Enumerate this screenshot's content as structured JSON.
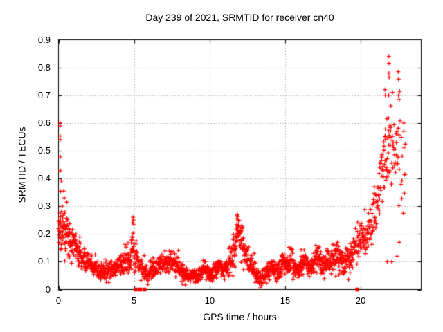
{
  "chart_data": {
    "type": "scatter",
    "title": "Day 239 of 2021, SRMTID for receiver cn40",
    "xlabel": "GPS time / hours",
    "ylabel": "SRMTID / TECUs",
    "xlim": [
      0,
      24
    ],
    "ylim": [
      0,
      0.9
    ],
    "xticks": [
      0,
      5,
      10,
      15,
      20
    ],
    "xtick_labels": [
      "0",
      "5",
      "10",
      "15",
      "20"
    ],
    "yticks": [
      0,
      0.1,
      0.2,
      0.3,
      0.4,
      0.5,
      0.6,
      0.7,
      0.8,
      0.9
    ],
    "ytick_labels": [
      "0",
      "0.1",
      "0.2",
      "0.3",
      "0.4",
      "0.5",
      "0.6",
      "0.7",
      "0.8",
      "0.9"
    ],
    "grid": true,
    "legend": "none",
    "marker": {
      "shape": "plus",
      "color": "#ff0000",
      "size": 6
    },
    "grid_color": "#b0b0b0",
    "axis_color": "#000000",
    "background_color": "#ffffff",
    "series_name": "SRMTID",
    "seed": 239,
    "envelope_bins": {
      "bin_width_hours": 0.25,
      "columns": [
        "start_hour",
        "center_tecu",
        "halfwidth_tecu",
        "count"
      ],
      "rows": [
        [
          0.0,
          0.23,
          0.09,
          26
        ],
        [
          0.25,
          0.22,
          0.07,
          24
        ],
        [
          0.5,
          0.2,
          0.06,
          22
        ],
        [
          0.75,
          0.17,
          0.05,
          22
        ],
        [
          1.0,
          0.15,
          0.05,
          22
        ],
        [
          1.25,
          0.13,
          0.05,
          22
        ],
        [
          1.5,
          0.115,
          0.04,
          22
        ],
        [
          1.75,
          0.1,
          0.035,
          22
        ],
        [
          2.0,
          0.09,
          0.035,
          22
        ],
        [
          2.25,
          0.078,
          0.03,
          22
        ],
        [
          2.5,
          0.07,
          0.03,
          22
        ],
        [
          2.75,
          0.065,
          0.028,
          22
        ],
        [
          3.0,
          0.068,
          0.03,
          22
        ],
        [
          3.25,
          0.07,
          0.03,
          22
        ],
        [
          3.5,
          0.075,
          0.032,
          22
        ],
        [
          3.75,
          0.08,
          0.032,
          22
        ],
        [
          4.0,
          0.085,
          0.035,
          22
        ],
        [
          4.25,
          0.095,
          0.04,
          22
        ],
        [
          4.5,
          0.105,
          0.045,
          22
        ],
        [
          4.75,
          0.14,
          0.07,
          24
        ],
        [
          5.0,
          0.12,
          0.06,
          18
        ],
        [
          5.25,
          0.085,
          0.04,
          14
        ],
        [
          5.5,
          0.07,
          0.035,
          16
        ],
        [
          5.75,
          0.062,
          0.03,
          20
        ],
        [
          6.0,
          0.068,
          0.03,
          22
        ],
        [
          6.25,
          0.078,
          0.035,
          22
        ],
        [
          6.5,
          0.088,
          0.035,
          22
        ],
        [
          6.75,
          0.092,
          0.035,
          22
        ],
        [
          7.0,
          0.095,
          0.035,
          22
        ],
        [
          7.25,
          0.1,
          0.04,
          22
        ],
        [
          7.5,
          0.1,
          0.04,
          22
        ],
        [
          7.75,
          0.082,
          0.035,
          22
        ],
        [
          8.0,
          0.065,
          0.03,
          22
        ],
        [
          8.25,
          0.056,
          0.026,
          22
        ],
        [
          8.5,
          0.05,
          0.025,
          22
        ],
        [
          8.75,
          0.05,
          0.025,
          22
        ],
        [
          9.0,
          0.046,
          0.024,
          22
        ],
        [
          9.25,
          0.055,
          0.025,
          22
        ],
        [
          9.5,
          0.078,
          0.03,
          22
        ],
        [
          9.75,
          0.065,
          0.03,
          22
        ],
        [
          10.0,
          0.055,
          0.026,
          22
        ],
        [
          10.25,
          0.07,
          0.03,
          22
        ],
        [
          10.5,
          0.085,
          0.035,
          22
        ],
        [
          10.75,
          0.07,
          0.032,
          22
        ],
        [
          11.0,
          0.076,
          0.035,
          22
        ],
        [
          11.25,
          0.1,
          0.05,
          22
        ],
        [
          11.5,
          0.14,
          0.06,
          24
        ],
        [
          11.75,
          0.2,
          0.07,
          26
        ],
        [
          12.0,
          0.17,
          0.07,
          24
        ],
        [
          12.25,
          0.12,
          0.05,
          22
        ],
        [
          12.5,
          0.1,
          0.04,
          22
        ],
        [
          12.75,
          0.08,
          0.035,
          22
        ],
        [
          13.0,
          0.055,
          0.03,
          22
        ],
        [
          13.25,
          0.04,
          0.025,
          22
        ],
        [
          13.5,
          0.05,
          0.028,
          22
        ],
        [
          13.75,
          0.068,
          0.03,
          22
        ],
        [
          14.0,
          0.08,
          0.035,
          22
        ],
        [
          14.25,
          0.066,
          0.03,
          22
        ],
        [
          14.5,
          0.07,
          0.032,
          22
        ],
        [
          14.75,
          0.095,
          0.04,
          22
        ],
        [
          15.0,
          0.09,
          0.04,
          22
        ],
        [
          15.25,
          0.11,
          0.05,
          22
        ],
        [
          15.5,
          0.08,
          0.035,
          22
        ],
        [
          15.75,
          0.072,
          0.032,
          22
        ],
        [
          16.0,
          0.09,
          0.04,
          22
        ],
        [
          16.25,
          0.1,
          0.045,
          22
        ],
        [
          16.5,
          0.082,
          0.036,
          22
        ],
        [
          16.75,
          0.1,
          0.04,
          22
        ],
        [
          17.0,
          0.12,
          0.05,
          22
        ],
        [
          17.25,
          0.1,
          0.042,
          22
        ],
        [
          17.5,
          0.092,
          0.04,
          22
        ],
        [
          17.75,
          0.11,
          0.045,
          22
        ],
        [
          18.0,
          0.1,
          0.045,
          22
        ],
        [
          18.25,
          0.128,
          0.05,
          22
        ],
        [
          18.5,
          0.118,
          0.05,
          22
        ],
        [
          18.75,
          0.092,
          0.042,
          22
        ],
        [
          19.0,
          0.11,
          0.045,
          22
        ],
        [
          19.25,
          0.13,
          0.05,
          22
        ],
        [
          19.5,
          0.145,
          0.055,
          16
        ],
        [
          19.75,
          0.185,
          0.05,
          18
        ],
        [
          20.0,
          0.2,
          0.055,
          20
        ],
        [
          20.25,
          0.195,
          0.06,
          16
        ],
        [
          20.5,
          0.23,
          0.07,
          16
        ],
        [
          20.75,
          0.28,
          0.08,
          16
        ],
        [
          21.0,
          0.33,
          0.09,
          16
        ],
        [
          21.25,
          0.4,
          0.11,
          16
        ],
        [
          21.5,
          0.47,
          0.12,
          18
        ],
        [
          21.75,
          0.52,
          0.13,
          18
        ],
        [
          22.0,
          0.5,
          0.14,
          14
        ],
        [
          22.25,
          0.47,
          0.16,
          11
        ],
        [
          22.5,
          0.44,
          0.18,
          9
        ],
        [
          22.75,
          0.4,
          0.17,
          7
        ]
      ]
    },
    "outlier_points": [
      [
        0.1,
        0.6
      ],
      [
        0.1,
        0.59
      ],
      [
        0.11,
        0.553
      ],
      [
        0.11,
        0.54
      ],
      [
        0.12,
        0.478
      ],
      [
        0.12,
        0.428
      ],
      [
        0.18,
        0.391
      ],
      [
        0.14,
        0.354
      ],
      [
        0.35,
        0.355
      ],
      [
        0.38,
        0.33
      ],
      [
        0.55,
        0.315
      ],
      [
        4.9,
        0.24
      ],
      [
        4.93,
        0.26
      ],
      [
        4.95,
        0.25
      ],
      [
        4.97,
        0.235
      ],
      [
        11.8,
        0.255
      ],
      [
        11.82,
        0.27
      ],
      [
        11.86,
        0.262
      ],
      [
        11.9,
        0.25
      ],
      [
        20.9,
        0.37
      ],
      [
        21.6,
        0.72
      ],
      [
        21.63,
        0.7
      ],
      [
        21.85,
        0.7
      ],
      [
        21.86,
        0.84
      ],
      [
        21.87,
        0.815
      ],
      [
        21.86,
        0.78
      ],
      [
        21.88,
        0.765
      ],
      [
        22.1,
        0.71
      ],
      [
        22.48,
        0.785
      ],
      [
        22.5,
        0.758
      ],
      [
        22.5,
        0.7
      ],
      [
        22.55,
        0.685
      ],
      [
        22.85,
        0.6
      ],
      [
        22.85,
        0.57
      ],
      [
        21.75,
        0.1
      ],
      [
        22.05,
        0.1
      ],
      [
        22.4,
        0.12
      ],
      [
        22.55,
        0.17
      ]
    ],
    "zero_points": [
      [
        5.11,
        0
      ],
      [
        5.4,
        0
      ],
      [
        5.69,
        0
      ],
      [
        19.77,
        0
      ]
    ]
  }
}
